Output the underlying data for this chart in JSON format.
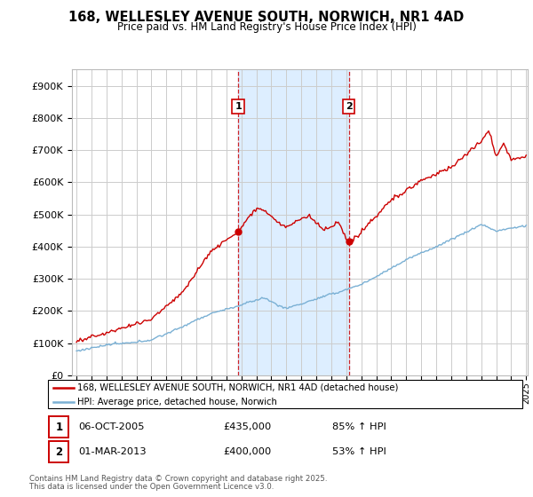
{
  "title": "168, WELLESLEY AVENUE SOUTH, NORWICH, NR1 4AD",
  "subtitle": "Price paid vs. HM Land Registry's House Price Index (HPI)",
  "legend_line1": "168, WELLESLEY AVENUE SOUTH, NORWICH, NR1 4AD (detached house)",
  "legend_line2": "HPI: Average price, detached house, Norwich",
  "sale1_label": "06-OCT-2005",
  "sale1_price": 435000,
  "sale1_price_str": "£435,000",
  "sale1_hpi": "85% ↑ HPI",
  "sale1_yr": 2005.79,
  "sale1_red_val": 435000,
  "sale2_label": "01-MAR-2013",
  "sale2_price": 400000,
  "sale2_price_str": "£400,000",
  "sale2_hpi": "53% ↑ HPI",
  "sale2_yr": 2013.17,
  "sale2_red_val": 400000,
  "footnote_line1": "Contains HM Land Registry data © Crown copyright and database right 2025.",
  "footnote_line2": "This data is licensed under the Open Government Licence v3.0.",
  "red_color": "#cc0000",
  "blue_color": "#7ab0d4",
  "shaded_color": "#ddeeff",
  "vline_color": "#cc0000",
  "grid_color": "#cccccc",
  "bg_color": "#ffffff",
  "ylim_min": 0,
  "ylim_max": 950000,
  "ytick_step": 100000,
  "start_year": 1995,
  "end_year": 2025,
  "fig_width": 6.0,
  "fig_height": 5.6,
  "dpi": 100
}
